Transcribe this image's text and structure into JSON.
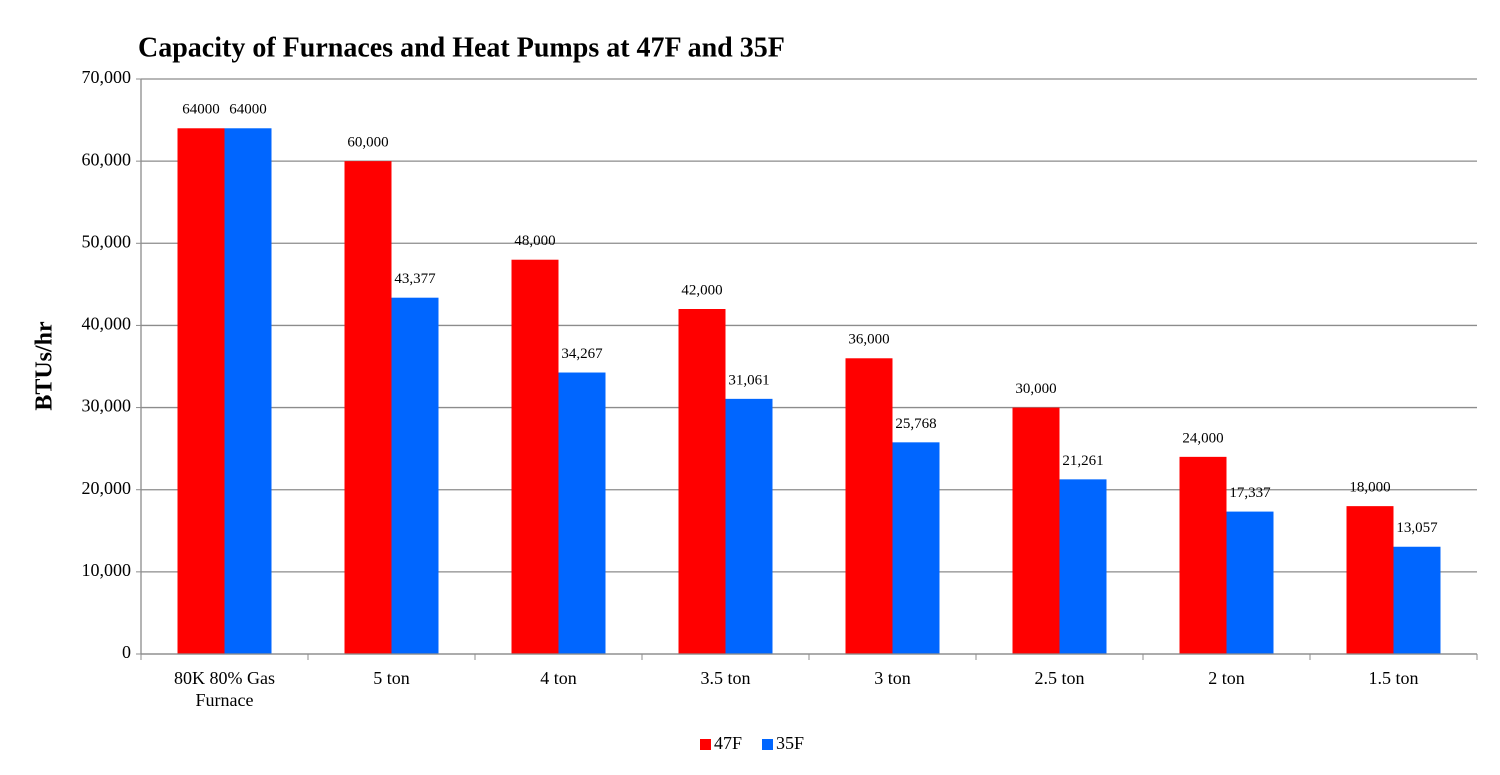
{
  "chart_data": {
    "type": "bar",
    "title": "Capacity of Furnaces and Heat Pumps at 47F and 35F",
    "y_label": "BTUs/hr",
    "categories": [
      "80K 80% Gas Furnace",
      "5 ton",
      "4 ton",
      "3.5 ton",
      "3 ton",
      "2.5 ton",
      "2 ton",
      "1.5 ton"
    ],
    "series": [
      {
        "name": "47F",
        "color": "#ff0000",
        "values": [
          64000,
          60000,
          48000,
          42000,
          36000,
          30000,
          24000,
          18000
        ],
        "value_labels": [
          "64000",
          "60,000",
          "48,000",
          "42,000",
          "36,000",
          "30,000",
          "24,000",
          "18,000"
        ]
      },
      {
        "name": "35F",
        "color": "#0066ff",
        "values": [
          64000,
          43377,
          34267,
          31061,
          25768,
          21261,
          17337,
          13057
        ],
        "value_labels": [
          "64000",
          "43,377",
          "34,267",
          "31,061",
          "25,768",
          "21,261",
          "17,337",
          "13,057"
        ]
      }
    ],
    "ylim": [
      0,
      70000
    ],
    "yticks": [
      0,
      {
        "value": 10000,
        "label": "10,000"
      },
      {
        "value": 20000,
        "label": "20,000"
      },
      {
        "value": 30000,
        "label": "30,000"
      },
      {
        "value": 40000,
        "label": "40,000"
      },
      {
        "value": 50000,
        "label": "50,000"
      },
      {
        "value": 60000,
        "label": "60,000"
      },
      {
        "value": 70000,
        "label": "70,000"
      }
    ],
    "grid": true,
    "legend": "bottom"
  }
}
